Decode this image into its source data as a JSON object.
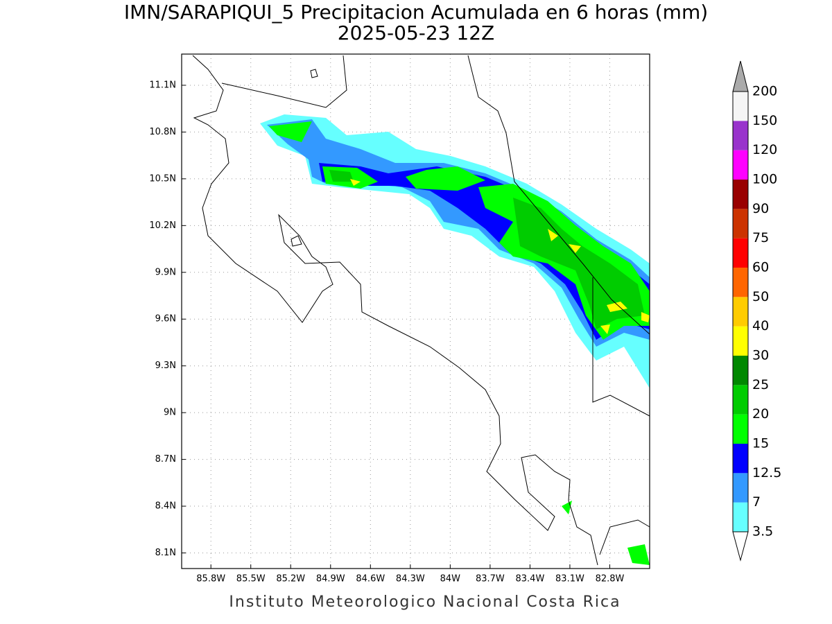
{
  "map": {
    "title": "IMN/SARAPIQUI_5 Precipitacion Acumulada en 6 horas (mm)",
    "subtitle": "2025-05-23 12Z",
    "footer": "Instituto Meteorologico Nacional Costa Rica",
    "xlim": [
      -86.02,
      -82.5
    ],
    "ylim": [
      8.0,
      11.3
    ],
    "xticks": [
      {
        "value": -85.8,
        "label": "85.8W"
      },
      {
        "value": -85.5,
        "label": "85.5W"
      },
      {
        "value": -85.2,
        "label": "85.2W"
      },
      {
        "value": -84.9,
        "label": "84.9W"
      },
      {
        "value": -84.6,
        "label": "84.6W"
      },
      {
        "value": -84.3,
        "label": "84.3W"
      },
      {
        "value": -84,
        "label": "84W"
      },
      {
        "value": -83.7,
        "label": "83.7W"
      },
      {
        "value": -83.4,
        "label": "83.4W"
      },
      {
        "value": -83.1,
        "label": "83.1W"
      },
      {
        "value": -82.8,
        "label": "82.8W"
      }
    ],
    "yticks": [
      {
        "value": 8.1,
        "label": "8.1N"
      },
      {
        "value": 8.4,
        "label": "8.4N"
      },
      {
        "value": 8.7,
        "label": "8.7N"
      },
      {
        "value": 9,
        "label": "9N"
      },
      {
        "value": 9.3,
        "label": "9.3N"
      },
      {
        "value": 9.6,
        "label": "9.6N"
      },
      {
        "value": 9.9,
        "label": "9.9N"
      },
      {
        "value": 10.2,
        "label": "10.2N"
      },
      {
        "value": 10.5,
        "label": "10.5N"
      },
      {
        "value": 10.8,
        "label": "10.8N"
      },
      {
        "value": 11.1,
        "label": "11.1N"
      }
    ],
    "grid": true,
    "colorbar": {
      "levels": [
        3.5,
        7,
        12.5,
        15,
        20,
        25,
        30,
        40,
        50,
        60,
        75,
        90,
        100,
        120,
        150,
        200
      ],
      "colors": [
        "#ffffff",
        "#66ffff",
        "#3399ff",
        "#0000ff",
        "#00ff00",
        "#00cc00",
        "#008800",
        "#ffff00",
        "#ffcc00",
        "#ff6600",
        "#ff0000",
        "#cc3300",
        "#990000",
        "#ff00ff",
        "#9933cc",
        "#f5f5f5",
        "#aaaaaa"
      ]
    }
  }
}
